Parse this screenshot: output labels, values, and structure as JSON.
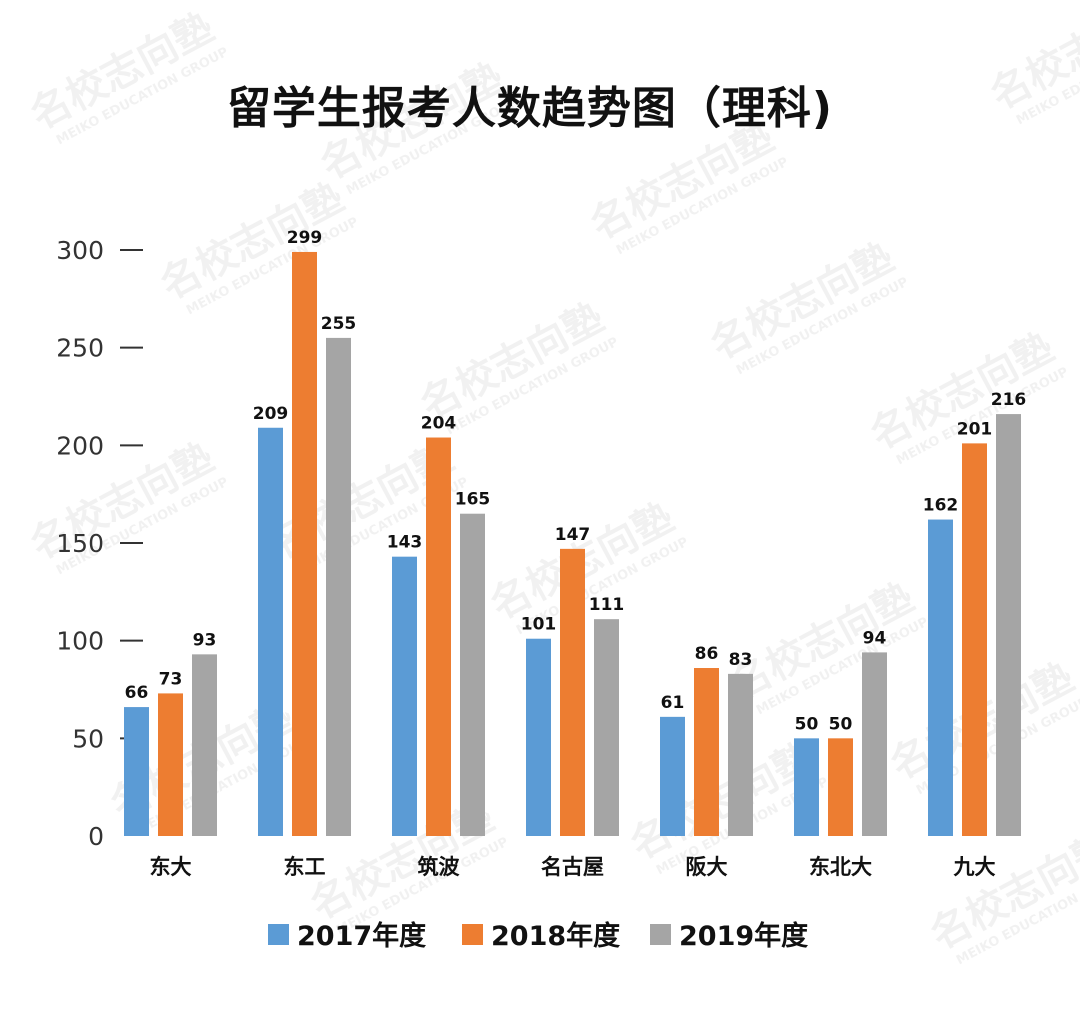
{
  "chart_data": {
    "type": "bar",
    "title": "留学生报考人数趋势图（理科)",
    "categories": [
      "东大",
      "东工",
      "筑波",
      "名古屋",
      "阪大",
      "东北大",
      "九大"
    ],
    "series": [
      {
        "name": "2017年度",
        "color": "#5b9bd5",
        "values": [
          66,
          209,
          143,
          101,
          61,
          50,
          162
        ]
      },
      {
        "name": "2018年度",
        "color": "#ed7d31",
        "values": [
          73,
          299,
          204,
          147,
          86,
          50,
          201
        ]
      },
      {
        "name": "2019年度",
        "color": "#a5a5a5",
        "values": [
          93,
          255,
          165,
          111,
          83,
          94,
          216
        ]
      }
    ],
    "ylim": [
      0,
      300
    ],
    "yticks": [
      0,
      50,
      100,
      150,
      200,
      250,
      300
    ],
    "xlabel": "",
    "ylabel": "",
    "grid": false,
    "legend": "bottom"
  },
  "watermark": {
    "text": "名校志向塾",
    "subtext": "MEIKO EDUCATION GROUP"
  }
}
